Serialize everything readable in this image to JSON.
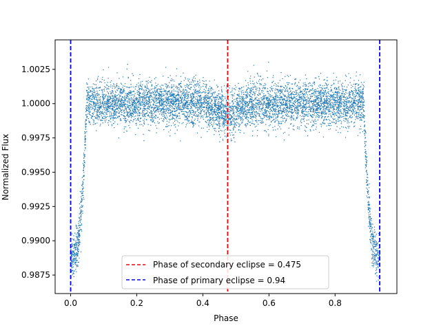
{
  "chart_data": {
    "type": "scatter",
    "title": "",
    "xlabel": "Phase",
    "ylabel": "Normalized Flux",
    "xlim": [
      -0.047,
      0.987
    ],
    "ylim": [
      0.98615,
      1.00465
    ],
    "x_ticks": [
      0.0,
      0.2,
      0.4,
      0.6,
      0.8
    ],
    "x_tick_labels": [
      "0.0",
      "0.2",
      "0.4",
      "0.6",
      "0.8"
    ],
    "y_ticks": [
      0.9875,
      0.99,
      0.9925,
      0.995,
      0.9975,
      1.0,
      1.0025
    ],
    "y_tick_labels": [
      "0.9875",
      "0.9900",
      "0.9925",
      "0.9950",
      "0.9975",
      "1.0000",
      "1.0025"
    ],
    "grid": false,
    "legend_position": "lower-center",
    "series": [
      {
        "kind": "scatter",
        "color": "#1f77b4",
        "marker_size_hint": "tiny",
        "profile": {
          "phase_range": [
            0.0,
            0.935
          ],
          "out_of_eclipse_flux": 1.0,
          "out_of_eclipse_scatter": 0.001,
          "primary_eclipse_depth_flux": 0.9888,
          "ingress_egress_phase_width": 0.048,
          "secondary_eclipse_center": 0.475,
          "secondary_eclipse_depth_flux": 0.9993
        }
      }
    ],
    "vlines": [
      {
        "x": 0.475,
        "color": "#ff0000",
        "style": "dashed",
        "label": "Phase of secondary eclipse = 0.475"
      },
      {
        "x": 0.0,
        "color": "#0000ff",
        "style": "dashed",
        "label": "Phase of primary eclipse = 0.94"
      },
      {
        "x": 0.935,
        "color": "#0000ff",
        "style": "dashed",
        "label": ""
      }
    ]
  }
}
